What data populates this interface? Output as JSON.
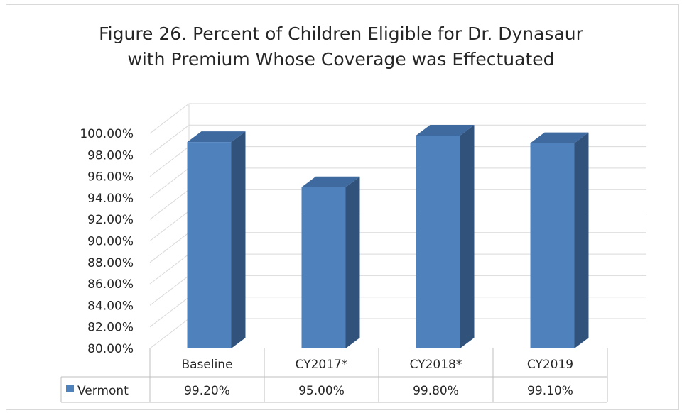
{
  "chart_data": {
    "type": "bar",
    "title_lines": [
      "Figure 26. Percent of Children Eligible for Dr. Dynasaur",
      "with Premium Whose Coverage was Effectuated"
    ],
    "categories": [
      "Baseline",
      "CY2017*",
      "CY2018*",
      "CY2019"
    ],
    "series": [
      {
        "name": "Vermont",
        "values": [
          99.2,
          95.0,
          99.8,
          99.1
        ],
        "labels": [
          "99.20%",
          "95.00%",
          "99.80%",
          "99.10%"
        ]
      }
    ],
    "ylim": [
      80,
      100
    ],
    "y_ticks": [
      "80.00%",
      "82.00%",
      "84.00%",
      "86.00%",
      "88.00%",
      "90.00%",
      "92.00%",
      "94.00%",
      "96.00%",
      "98.00%",
      "100.00%"
    ],
    "grid": true,
    "legend": "data-table",
    "colors": {
      "bar_front": "#4f81bd",
      "bar_side": "#30527b",
      "bar_top": "#3e6aa0",
      "grid": "#d9d9d9"
    }
  }
}
